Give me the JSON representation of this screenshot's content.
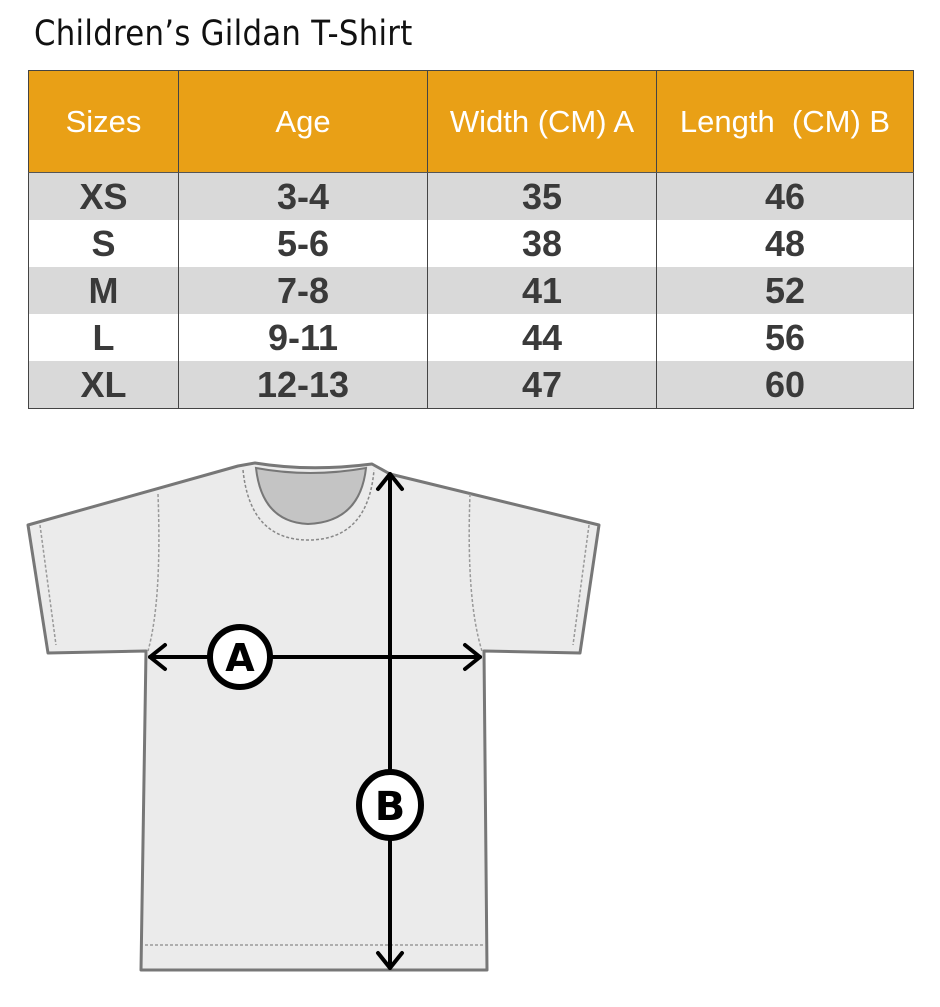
{
  "title": "Children’s Gildan T-Shirt",
  "table": {
    "headers": [
      "Sizes",
      "Age",
      "Width (CM) A",
      "Length  (CM) B"
    ],
    "rows": [
      [
        "XS",
        "3-4",
        "35",
        "46"
      ],
      [
        "S",
        "5-6",
        "38",
        "48"
      ],
      [
        "M",
        "7-8",
        "41",
        "52"
      ],
      [
        "L",
        "9-11",
        "44",
        "56"
      ],
      [
        "XL",
        "12-13",
        "47",
        "60"
      ]
    ]
  },
  "diagram": {
    "label_a": "A",
    "label_b": "B"
  },
  "colors": {
    "header": "#e9a016",
    "alt_row": "#d9d9d9",
    "shirt": "#ebebeb"
  }
}
